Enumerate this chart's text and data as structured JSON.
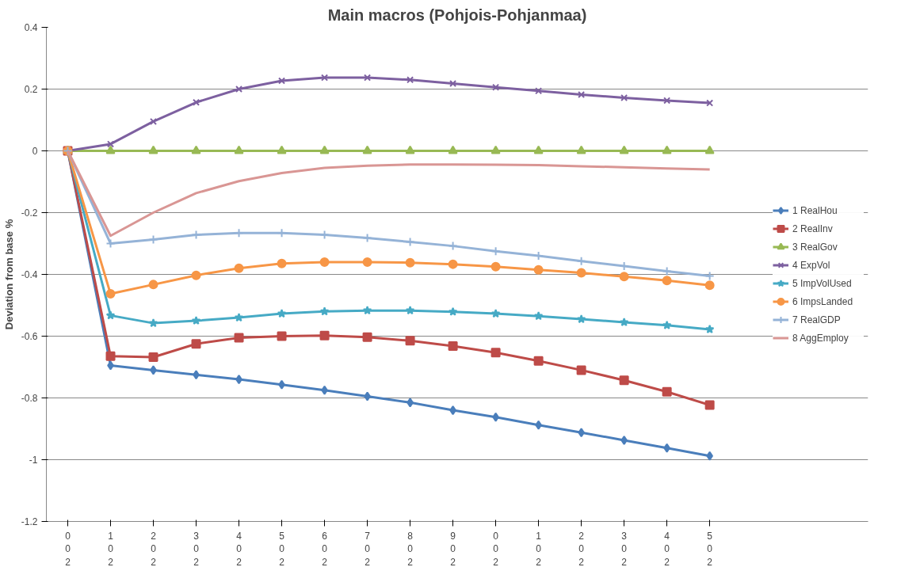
{
  "chart_data": {
    "type": "line",
    "title": "Main macros (Pohjois-Pohjanmaa)",
    "ylabel": "Deviation from base %",
    "categories": [
      "002",
      "102",
      "202",
      "302",
      "402",
      "502",
      "602",
      "702",
      "802",
      "902",
      "002",
      "102",
      "202",
      "302",
      "402",
      "502"
    ],
    "ylim": [
      -1.2,
      0.4
    ],
    "yticks": [
      -1.2,
      -1,
      -0.8,
      -0.6,
      -0.4,
      -0.2,
      0,
      0.2,
      0.4
    ],
    "grid": "y",
    "legend": "right",
    "series": [
      {
        "name": "1 RealHou",
        "color": "#4a7ebb",
        "marker": "diamond",
        "values": [
          0,
          -0.695,
          -0.71,
          -0.725,
          -0.74,
          -0.757,
          -0.775,
          -0.795,
          -0.815,
          -0.84,
          -0.862,
          -0.888,
          -0.912,
          -0.937,
          -0.962,
          -0.988
        ]
      },
      {
        "name": "2 RealInv",
        "color": "#be4b48",
        "marker": "square",
        "values": [
          0,
          -0.665,
          -0.668,
          -0.625,
          -0.605,
          -0.6,
          -0.598,
          -0.603,
          -0.615,
          -0.632,
          -0.653,
          -0.68,
          -0.71,
          -0.743,
          -0.78,
          -0.823
        ]
      },
      {
        "name": "3 RealGov",
        "color": "#98b954",
        "marker": "triangle",
        "values": [
          0,
          0,
          0,
          0,
          0,
          0,
          0,
          0,
          0,
          0,
          0,
          0,
          0,
          0,
          0,
          0
        ]
      },
      {
        "name": "4 ExpVol",
        "color": "#7d60a0",
        "marker": "x",
        "values": [
          0,
          0.022,
          0.095,
          0.157,
          0.2,
          0.227,
          0.237,
          0.237,
          0.23,
          0.218,
          0.206,
          0.194,
          0.182,
          0.172,
          0.163,
          0.155
        ]
      },
      {
        "name": "5 ImpVolUsed",
        "color": "#46aac5",
        "marker": "star",
        "values": [
          0,
          -0.533,
          -0.558,
          -0.55,
          -0.54,
          -0.527,
          -0.52,
          -0.517,
          -0.517,
          -0.521,
          -0.527,
          -0.535,
          -0.545,
          -0.555,
          -0.565,
          -0.578
        ]
      },
      {
        "name": "6 ImpsLanded",
        "color": "#f79646",
        "marker": "circle",
        "values": [
          0,
          -0.463,
          -0.433,
          -0.403,
          -0.38,
          -0.365,
          -0.36,
          -0.36,
          -0.362,
          -0.367,
          -0.375,
          -0.385,
          -0.395,
          -0.407,
          -0.42,
          -0.435
        ]
      },
      {
        "name": "7 RealGDP",
        "color": "#95b3d7",
        "marker": "cross",
        "values": [
          0,
          -0.3,
          -0.287,
          -0.272,
          -0.266,
          -0.266,
          -0.272,
          -0.282,
          -0.295,
          -0.308,
          -0.325,
          -0.34,
          -0.357,
          -0.373,
          -0.39,
          -0.405
        ]
      },
      {
        "name": "8 AggEmploy",
        "color": "#d99694",
        "marker": "none",
        "values": [
          0,
          -0.275,
          -0.2,
          -0.137,
          -0.098,
          -0.072,
          -0.055,
          -0.048,
          -0.044,
          -0.044,
          -0.045,
          -0.046,
          -0.05,
          -0.053,
          -0.057,
          -0.06
        ]
      }
    ]
  }
}
